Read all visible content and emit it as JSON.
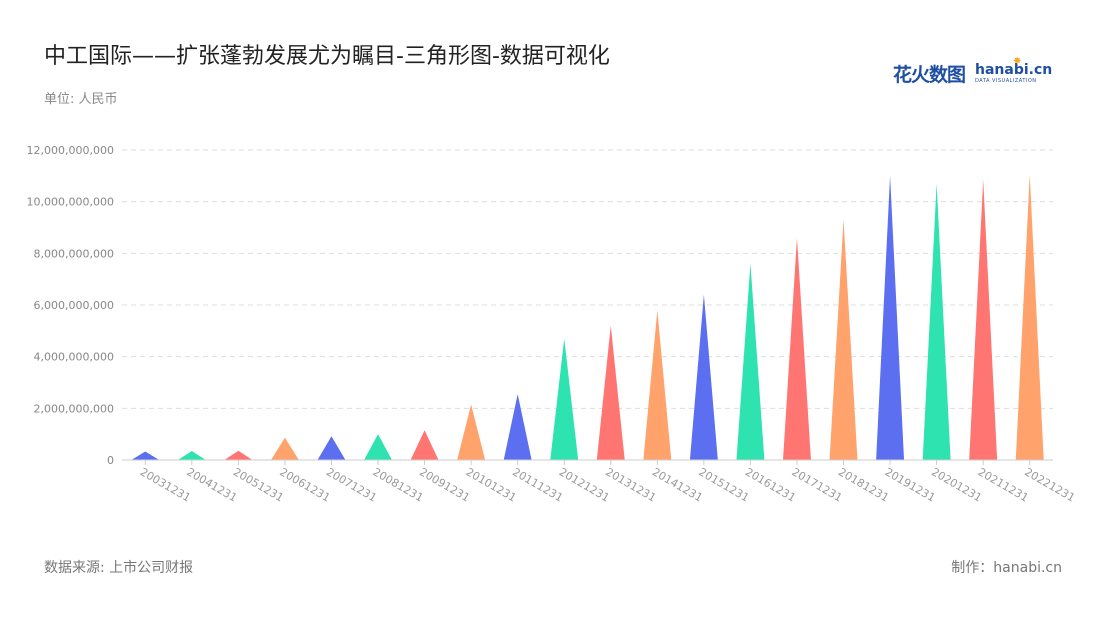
{
  "header": {
    "title": "中工国际——扩张蓬勃发展尤为瞩目-三角形图-数据可视化",
    "unit": "单位: 人民币"
  },
  "logo": {
    "cn": "花火数图",
    "en": "hanabi.cn",
    "sub": "DATA VISUALIZATION"
  },
  "footer": {
    "source": "数据来源: 上市公司财报",
    "credit": "制作：hanabi.cn"
  },
  "chart_data": {
    "type": "bar",
    "mark_shape": "triangle",
    "categories": [
      "20031231",
      "20041231",
      "20051231",
      "20061231",
      "20071231",
      "20081231",
      "20091231",
      "20101231",
      "20111231",
      "20121231",
      "20131231",
      "20141231",
      "20151231",
      "20161231",
      "20171231",
      "20181231",
      "20191231",
      "20201231",
      "20211231",
      "20221231"
    ],
    "values": [
      330000000,
      350000000,
      360000000,
      860000000,
      920000000,
      1000000000,
      1150000000,
      2150000000,
      2550000000,
      4700000000,
      5200000000,
      5800000000,
      6400000000,
      7600000000,
      8600000000,
      9300000000,
      11000000000,
      10700000000,
      10850000000,
      11050000000
    ],
    "ylim": [
      0,
      12000000000
    ],
    "yticks": [
      0,
      2000000000,
      4000000000,
      6000000000,
      8000000000,
      10000000000,
      12000000000
    ],
    "ytick_labels": [
      "0",
      "2,000,000,000",
      "4,000,000,000",
      "6,000,000,000",
      "8,000,000,000",
      "10,000,000,000",
      "12,000,000,000"
    ],
    "grid": true,
    "colors": [
      "#5b6ff0",
      "#2fe3b0",
      "#ff7571",
      "#ffa26c"
    ]
  }
}
